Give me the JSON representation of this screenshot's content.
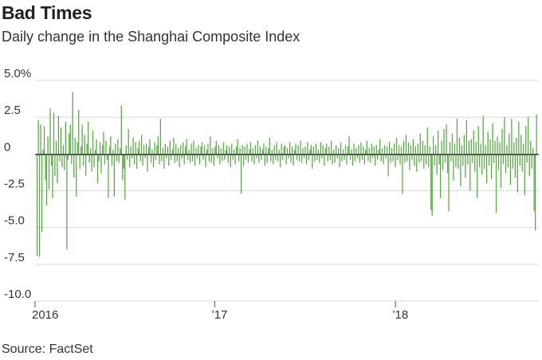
{
  "header": {
    "title": "Bad Times",
    "subtitle": "Daily change in the Shanghai Composite Index"
  },
  "footer": {
    "source": "Source: FactSet"
  },
  "chart_data": {
    "type": "bar",
    "title": "Bad Times",
    "subtitle": "Daily change in the Shanghai Composite Index",
    "ylim": [
      -10,
      5
    ],
    "y_ticks": [
      5,
      2.5,
      0,
      -2.5,
      -5,
      -7.5,
      -10
    ],
    "y_tick_labels": [
      "5.0%",
      "2.5",
      "0",
      "-2.5",
      "-5.0",
      "-7.5",
      "-10.0"
    ],
    "x_range": [
      "2016-01-04",
      "2018-10-11"
    ],
    "x_ticks": [
      {
        "date": "2016-01-01",
        "label": "2016"
      },
      {
        "date": "2017-01-01",
        "label": "’17"
      },
      {
        "date": "2018-01-01",
        "label": "’18"
      }
    ],
    "bar_color": "#5aa447",
    "grid": true,
    "series": [
      {
        "values": [
          -6.9,
          2.3,
          -7.0,
          2.0,
          -5.3,
          0.3,
          1.9,
          -1.8,
          -3.5,
          1.2,
          -2.4,
          3.1,
          -0.8,
          -3.0,
          2.8,
          -1.5,
          0.9,
          -2.0,
          2.6,
          -0.5,
          1.8,
          -0.9,
          0.6,
          -1.1,
          2.2,
          -6.5,
          -0.4,
          1.4,
          2.0,
          -0.7,
          4.2,
          -1.6,
          1.1,
          -2.9,
          0.8,
          3.0,
          -1.0,
          0.5,
          2.0,
          -0.8,
          1.3,
          -1.5,
          0.7,
          2.2,
          -0.6,
          0.4,
          -1.2,
          1.6,
          -0.9,
          0.3,
          1.0,
          -2.0,
          -0.5,
          0.8,
          -1.3,
          0.6,
          1.5,
          -0.7,
          0.9,
          -0.4,
          -3.0,
          0.5,
          1.2,
          -0.8,
          0.3,
          -2.9,
          0.7,
          -0.5,
          1.0,
          -0.6,
          0.4,
          3.3,
          -1.8,
          -1.0,
          -3.1,
          0.6,
          -0.4,
          1.7,
          -0.9,
          0.5,
          -0.3,
          1.1,
          -0.7,
          0.8,
          -1.0,
          0.4,
          0.9,
          -0.5,
          1.3,
          -0.8,
          0.6,
          -0.3,
          0.7,
          -1.2,
          0.5,
          1.0,
          -0.6,
          0.3,
          -0.9,
          0.8,
          -0.4,
          0.6,
          1.2,
          -0.7,
          2.4,
          -0.5,
          0.4,
          -1.0,
          0.7,
          -0.3,
          0.5,
          -0.8,
          0.9,
          -0.4,
          0.3,
          1.1,
          -0.6,
          0.7,
          -0.5,
          0.4,
          -0.9,
          0.6,
          -0.3,
          0.8,
          -0.7,
          0.5,
          1.0,
          -0.4,
          0.3,
          -0.6,
          0.7,
          -0.5,
          0.9,
          -0.8,
          0.4,
          -0.3,
          0.6,
          -0.7,
          0.5,
          0.8,
          -0.4,
          0.6,
          -0.9,
          0.3,
          0.7,
          -0.5,
          1.2,
          -0.6,
          0.4,
          -0.8,
          0.5,
          0.9,
          -0.3,
          0.6,
          -0.7,
          0.4,
          -0.5,
          0.8,
          -0.4,
          0.3,
          0.6,
          -0.6,
          0.5,
          -0.9,
          0.7,
          -0.4,
          0.3,
          -0.7,
          0.5,
          1.0,
          -0.5,
          0.4,
          -2.7,
          0.6,
          -0.8,
          0.5,
          -0.4,
          0.7,
          -0.6,
          0.3,
          0.8,
          -0.5,
          0.4,
          -0.7,
          0.6,
          -0.3,
          0.9,
          -0.6,
          0.5,
          -0.4,
          0.3,
          0.7,
          -0.8,
          0.5,
          -0.6,
          0.4,
          1.1,
          -0.5,
          0.3,
          -0.7,
          0.6,
          -0.4,
          0.8,
          -0.5,
          0.3,
          -0.9,
          0.7,
          -0.4,
          0.5,
          0.6,
          -0.7,
          0.4,
          -0.3,
          0.8,
          -0.6,
          0.5,
          -0.8,
          0.3,
          0.7,
          -0.4,
          0.6,
          -0.5,
          0.9,
          -0.6,
          0.4,
          -0.3,
          0.5,
          -0.7,
          0.8,
          -0.4,
          0.3,
          0.6,
          -1.0,
          0.5,
          -0.5,
          0.7,
          -0.4,
          0.3,
          -0.6,
          0.8,
          -0.3,
          0.6,
          -0.8,
          0.4,
          0.7,
          -0.5,
          0.5,
          -0.4,
          0.9,
          -0.7,
          0.3,
          -0.6,
          0.6,
          -0.3,
          0.4,
          -0.9,
          0.8,
          -0.5,
          0.3,
          -0.4,
          0.6,
          -0.7,
          0.5,
          1.2,
          -0.4,
          0.3,
          -0.8,
          0.7,
          -0.5,
          0.4,
          -0.3,
          0.6,
          -0.6,
          0.8,
          -0.4,
          0.5,
          -0.7,
          0.3,
          0.9,
          -0.5,
          0.4,
          -0.6,
          0.7,
          -0.3,
          0.5,
          -0.8,
          0.6,
          -0.4,
          0.3,
          1.0,
          -0.5,
          0.4,
          -0.7,
          0.6,
          -0.3,
          0.5,
          -1.5,
          0.8,
          -0.6,
          0.4,
          -0.5,
          0.7,
          -0.9,
          1.1,
          -0.4,
          0.6,
          -0.7,
          0.5,
          -2.7,
          0.9,
          -0.6,
          1.3,
          -0.5,
          0.8,
          -1.1,
          0.6,
          -0.4,
          1.0,
          -0.8,
          0.5,
          -1.2,
          0.7,
          -0.6,
          1.4,
          -0.5,
          0.9,
          -1.0,
          0.6,
          -0.7,
          1.8,
          -0.9,
          0.5,
          -3.8,
          -4.2,
          1.2,
          -0.8,
          0.6,
          -1.4,
          1.6,
          -0.7,
          -3.0,
          0.9,
          -1.1,
          1.7,
          -0.6,
          2.0,
          -1.3,
          -3.9,
          0.8,
          -0.5,
          1.4,
          -1.8,
          0.7,
          -0.9,
          2.4,
          -1.0,
          1.1,
          -2.2,
          0.6,
          -0.8,
          1.3,
          -1.6,
          2.3,
          -0.7,
          0.9,
          -2.5,
          1.0,
          -0.6,
          1.6,
          -1.2,
          0.8,
          -3.0,
          1.9,
          -0.9,
          0.7,
          -1.4,
          2.6,
          -1.0,
          0.6,
          -2.0,
          1.5,
          -0.8,
          1.0,
          -1.7,
          2.1,
          -0.6,
          0.9,
          -4.0,
          1.2,
          -1.1,
          0.8,
          -2.3,
          1.7,
          -0.7,
          2.5,
          -1.3,
          0.6,
          -0.9,
          1.4,
          -2.1,
          2.4,
          -1.0,
          0.8,
          -1.6,
          1.1,
          -2.6,
          2.2,
          -0.8,
          1.3,
          -1.2,
          0.7,
          -2.8,
          1.9,
          -0.6,
          2.5,
          -1.5,
          0.9,
          -1.0,
          0.4,
          -3.9,
          -5.2,
          2.7
        ]
      }
    ]
  }
}
